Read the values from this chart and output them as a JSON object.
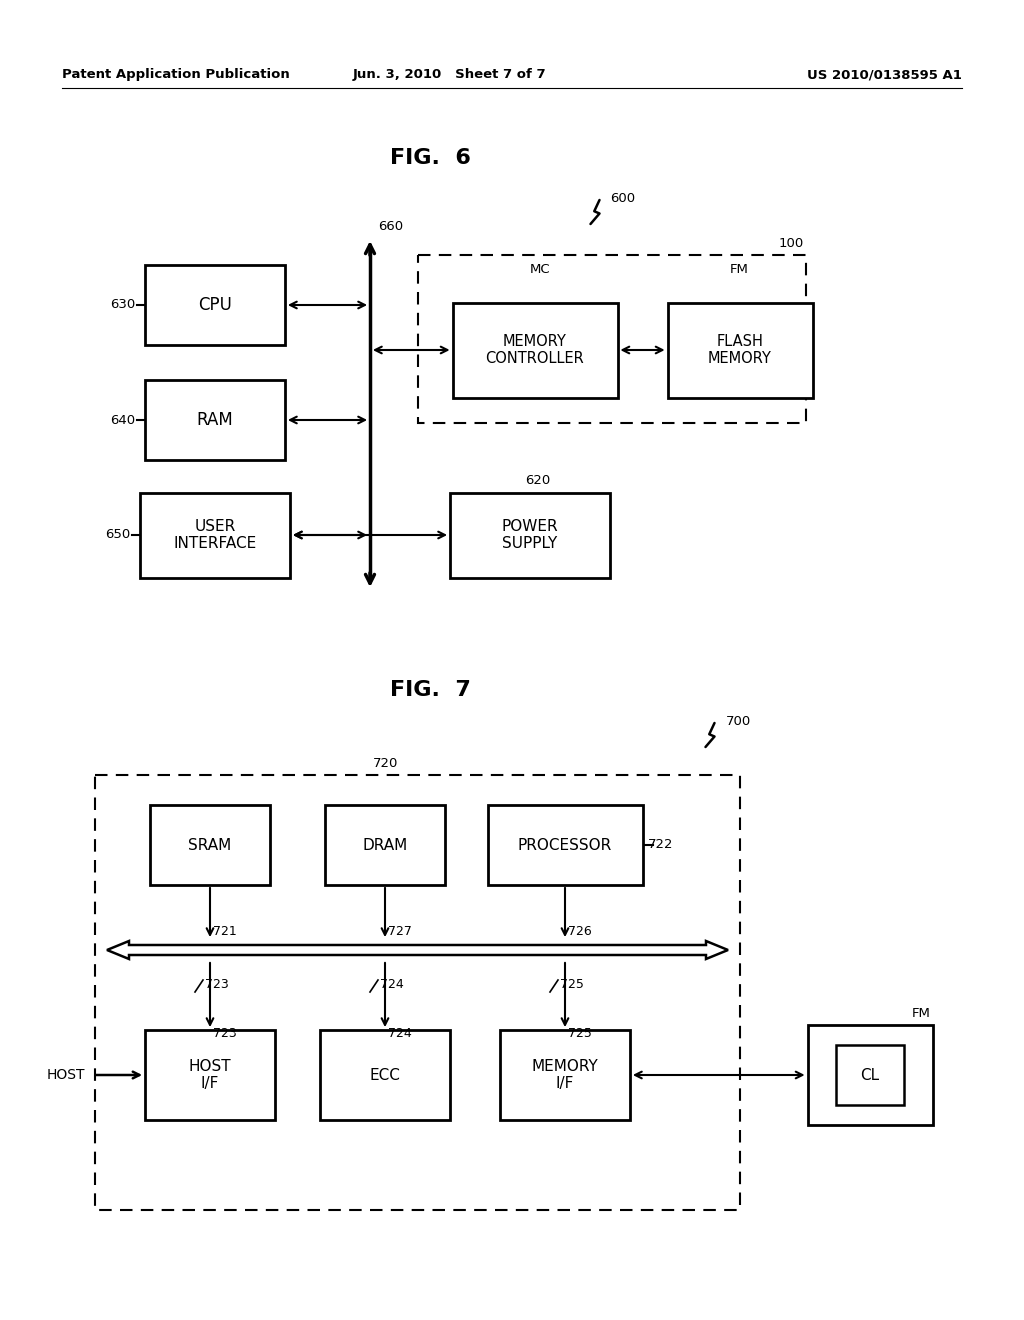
{
  "bg_color": "#ffffff",
  "header_left": "Patent Application Publication",
  "header_mid": "Jun. 3, 2010   Sheet 7 of 7",
  "header_right": "US 2010/0138595 A1",
  "fig6_title": "FIG.  6",
  "fig7_title": "FIG.  7"
}
